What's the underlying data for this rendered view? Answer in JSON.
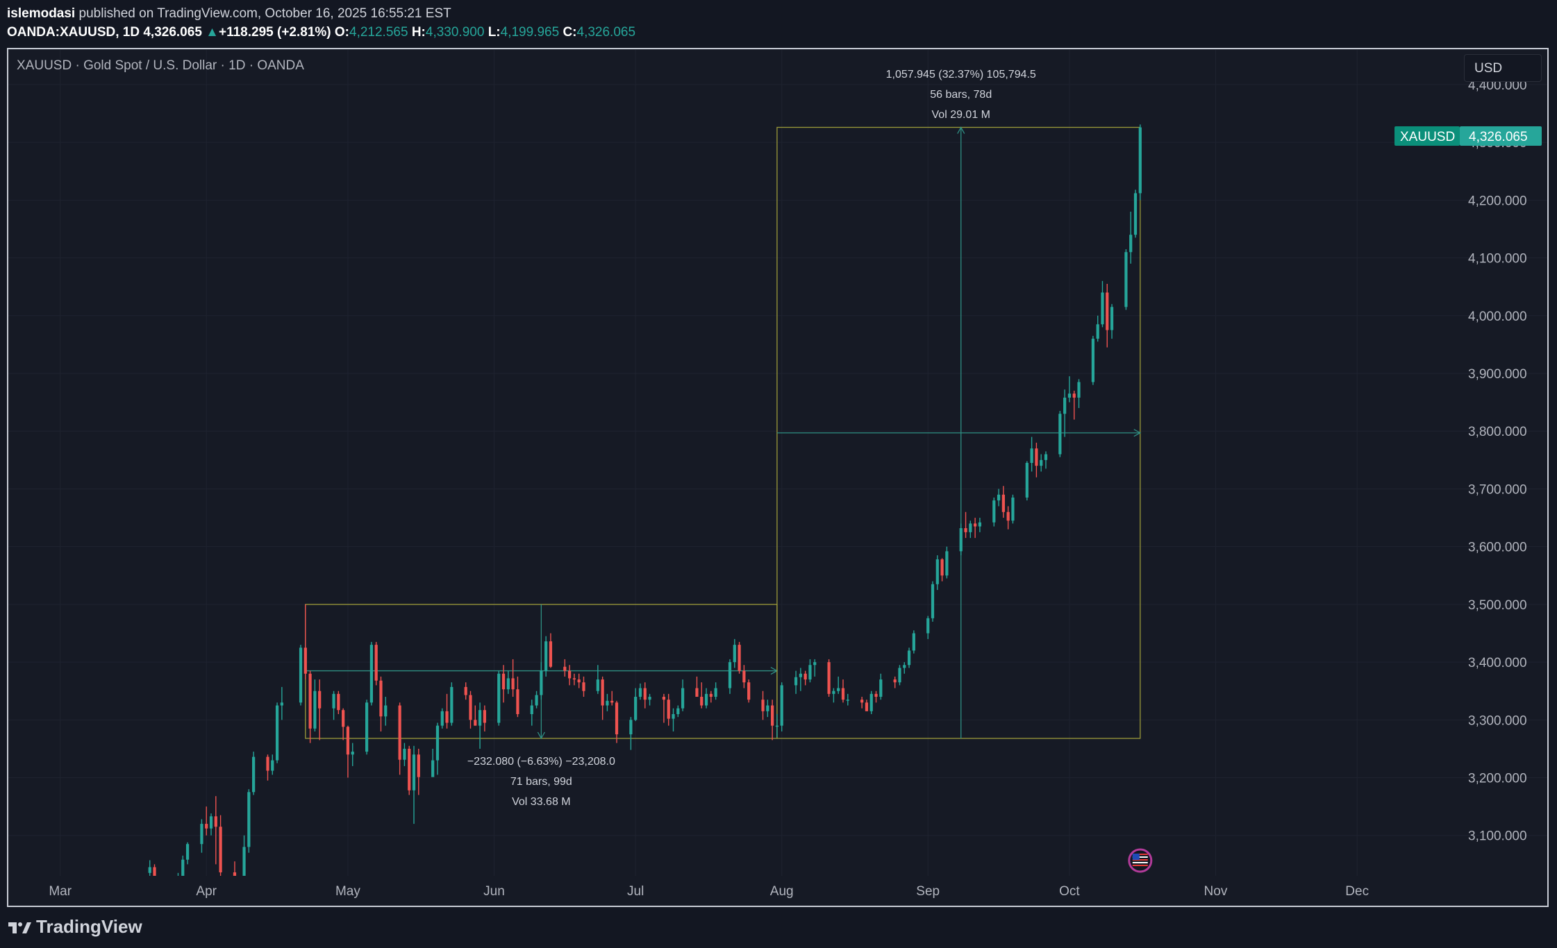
{
  "header": {
    "user": "islemodasi",
    "published": "published on TradingView.com, October 16, 2025 16:55:21 EST",
    "symbol": "OANDA:XAUUSD, 1D",
    "last": "4,326.065",
    "change": "+118.295 (+2.81%)",
    "open_label": "O:",
    "open": "4,212.565",
    "high_label": "H:",
    "high": "4,330.900",
    "low_label": "L:",
    "low": "4,199.965",
    "close_label": "C:",
    "close": "4,326.065"
  },
  "legend_title": "XAUUSD · Gold Spot / U.S. Dollar · 1D · OANDA",
  "currency_button": "USD",
  "price_tag": {
    "symbol": "XAUUSD",
    "value": "4,326.065"
  },
  "brand": "TradingView",
  "colors": {
    "up": "#26a69a",
    "down": "#ef5350",
    "background": "#161a25",
    "grid": "#1f2330",
    "range_box": "#9c9a3a",
    "arrow": "#2f8f83"
  },
  "chart_data": {
    "type": "candlestick",
    "yaxis_ticks": [
      3100,
      3200,
      3300,
      3400,
      3500,
      3600,
      3700,
      3800,
      3900,
      4000,
      4100,
      4200,
      4300,
      4400
    ],
    "yaxis_labels": [
      "3,100.000",
      "3,200.000",
      "3,300.000",
      "3,400.000",
      "3,500.000",
      "3,600.000",
      "3,700.000",
      "3,800.000",
      "3,900.000",
      "4,000.000",
      "4,100.000",
      "4,200.000",
      "4,300.000",
      "4,400.000"
    ],
    "ylim": [
      3030,
      4460
    ],
    "xlim": [
      "2025-02-18",
      "2025-12-21"
    ],
    "xaxis_ticks": [
      {
        "date": "2025-03-01",
        "label": "Mar"
      },
      {
        "date": "2025-04-01",
        "label": "Apr"
      },
      {
        "date": "2025-05-01",
        "label": "May"
      },
      {
        "date": "2025-06-01",
        "label": "Jun"
      },
      {
        "date": "2025-07-01",
        "label": "Jul"
      },
      {
        "date": "2025-08-01",
        "label": "Aug"
      },
      {
        "date": "2025-09-01",
        "label": "Sep"
      },
      {
        "date": "2025-10-01",
        "label": "Oct"
      },
      {
        "date": "2025-11-01",
        "label": "Nov"
      },
      {
        "date": "2025-12-01",
        "label": "Dec"
      }
    ],
    "candles": [
      [
        "2025-03-20",
        3035,
        3057,
        3025,
        3045
      ],
      [
        "2025-03-21",
        3045,
        3050,
        3000,
        3025
      ],
      [
        "2025-03-24",
        3025,
        3030,
        3000,
        3012
      ],
      [
        "2025-03-26",
        3020,
        3035,
        3010,
        3030
      ],
      [
        "2025-03-27",
        3030,
        3065,
        3025,
        3058
      ],
      [
        "2025-03-28",
        3058,
        3088,
        3050,
        3085
      ],
      [
        "2025-03-31",
        3085,
        3128,
        3070,
        3120
      ],
      [
        "2025-04-01",
        3120,
        3150,
        3100,
        3112
      ],
      [
        "2025-04-02",
        3112,
        3138,
        3100,
        3133
      ],
      [
        "2025-04-03",
        3133,
        3168,
        3050,
        3115
      ],
      [
        "2025-04-04",
        3115,
        3135,
        3020,
        3036
      ],
      [
        "2025-04-07",
        3036,
        3055,
        2960,
        3000
      ],
      [
        "2025-04-08",
        3000,
        3025,
        2970,
        3010
      ],
      [
        "2025-04-09",
        3010,
        3100,
        2990,
        3080
      ],
      [
        "2025-04-10",
        3080,
        3180,
        3070,
        3175
      ],
      [
        "2025-04-11",
        3175,
        3245,
        3170,
        3236
      ],
      [
        "2025-04-14",
        3236,
        3240,
        3195,
        3212
      ],
      [
        "2025-04-15",
        3212,
        3240,
        3205,
        3230
      ],
      [
        "2025-04-16",
        3230,
        3330,
        3225,
        3325
      ],
      [
        "2025-04-17",
        3325,
        3357,
        3300,
        3330
      ],
      [
        "2025-04-21",
        3330,
        3430,
        3325,
        3425
      ],
      [
        "2025-04-22",
        3425,
        3500,
        3370,
        3380
      ],
      [
        "2025-04-23",
        3380,
        3385,
        3260,
        3285
      ],
      [
        "2025-04-24",
        3285,
        3370,
        3280,
        3350
      ],
      [
        "2025-04-25",
        3350,
        3370,
        3265,
        3320
      ],
      [
        "2025-04-28",
        3320,
        3350,
        3300,
        3345
      ],
      [
        "2025-04-29",
        3345,
        3350,
        3310,
        3317
      ],
      [
        "2025-04-30",
        3317,
        3320,
        3265,
        3288
      ],
      [
        "2025-05-01",
        3288,
        3290,
        3200,
        3240
      ],
      [
        "2025-05-02",
        3240,
        3260,
        3220,
        3245
      ],
      [
        "2025-05-05",
        3245,
        3335,
        3240,
        3330
      ],
      [
        "2025-05-06",
        3330,
        3435,
        3325,
        3430
      ],
      [
        "2025-05-07",
        3430,
        3435,
        3360,
        3368
      ],
      [
        "2025-05-08",
        3368,
        3375,
        3280,
        3306
      ],
      [
        "2025-05-09",
        3306,
        3340,
        3290,
        3325
      ],
      [
        "2025-05-12",
        3325,
        3330,
        3205,
        3231
      ],
      [
        "2025-05-13",
        3231,
        3260,
        3220,
        3250
      ],
      [
        "2025-05-14",
        3250,
        3255,
        3170,
        3178
      ],
      [
        "2025-05-15",
        3178,
        3255,
        3120,
        3240
      ],
      [
        "2025-05-16",
        3240,
        3250,
        3170,
        3201
      ],
      [
        "2025-05-19",
        3201,
        3250,
        3205,
        3230
      ],
      [
        "2025-05-20",
        3230,
        3295,
        3205,
        3290
      ],
      [
        "2025-05-21",
        3290,
        3320,
        3285,
        3315
      ],
      [
        "2025-05-22",
        3315,
        3345,
        3285,
        3295
      ],
      [
        "2025-05-23",
        3295,
        3365,
        3290,
        3357
      ],
      [
        "2025-05-26",
        3357,
        3365,
        3335,
        3343
      ],
      [
        "2025-05-27",
        3343,
        3350,
        3285,
        3300
      ],
      [
        "2025-05-28",
        3300,
        3325,
        3290,
        3290
      ],
      [
        "2025-05-29",
        3290,
        3330,
        3250,
        3317
      ],
      [
        "2025-05-30",
        3317,
        3325,
        3280,
        3295
      ],
      [
        "2025-06-02",
        3295,
        3385,
        3290,
        3380
      ],
      [
        "2025-06-03",
        3380,
        3395,
        3330,
        3353
      ],
      [
        "2025-06-04",
        3353,
        3385,
        3345,
        3372
      ],
      [
        "2025-06-05",
        3372,
        3405,
        3340,
        3353
      ],
      [
        "2025-06-06",
        3353,
        3375,
        3305,
        3310
      ],
      [
        "2025-06-09",
        3310,
        3335,
        3290,
        3325
      ],
      [
        "2025-06-10",
        3325,
        3350,
        3320,
        3343
      ],
      [
        "2025-06-11",
        3343,
        3400,
        3335,
        3385
      ],
      [
        "2025-06-12",
        3385,
        3445,
        3375,
        3436
      ],
      [
        "2025-06-13",
        3436,
        3450,
        3390,
        3392
      ],
      [
        "2025-06-16",
        3392,
        3405,
        3375,
        3385
      ],
      [
        "2025-06-17",
        3385,
        3395,
        3360,
        3372
      ],
      [
        "2025-06-18",
        3372,
        3380,
        3360,
        3370
      ],
      [
        "2025-06-19",
        3370,
        3380,
        3355,
        3365
      ],
      [
        "2025-06-20",
        3365,
        3375,
        3340,
        3350
      ],
      [
        "2025-06-23",
        3350,
        3395,
        3345,
        3370
      ],
      [
        "2025-06-24",
        3370,
        3375,
        3300,
        3325
      ],
      [
        "2025-06-25",
        3325,
        3345,
        3315,
        3333
      ],
      [
        "2025-06-26",
        3333,
        3350,
        3325,
        3330
      ],
      [
        "2025-06-27",
        3330,
        3333,
        3260,
        3275
      ],
      [
        "2025-06-30",
        3275,
        3305,
        3248,
        3300
      ],
      [
        "2025-07-01",
        3300,
        3355,
        3298,
        3340
      ],
      [
        "2025-07-02",
        3340,
        3363,
        3335,
        3355
      ],
      [
        "2025-07-03",
        3355,
        3365,
        3320,
        3335
      ],
      [
        "2025-07-04",
        3335,
        3345,
        3325,
        3340
      ],
      [
        "2025-07-07",
        3340,
        3345,
        3295,
        3335
      ],
      [
        "2025-07-08",
        3335,
        3345,
        3290,
        3302
      ],
      [
        "2025-07-09",
        3302,
        3320,
        3280,
        3310
      ],
      [
        "2025-07-10",
        3310,
        3325,
        3305,
        3320
      ],
      [
        "2025-07-11",
        3320,
        3370,
        3315,
        3355
      ],
      [
        "2025-07-14",
        3355,
        3375,
        3340,
        3340
      ],
      [
        "2025-07-15",
        3340,
        3365,
        3320,
        3325
      ],
      [
        "2025-07-16",
        3325,
        3355,
        3320,
        3345
      ],
      [
        "2025-07-17",
        3345,
        3350,
        3330,
        3340
      ],
      [
        "2025-07-18",
        3340,
        3365,
        3335,
        3355
      ],
      [
        "2025-07-21",
        3355,
        3405,
        3345,
        3400
      ],
      [
        "2025-07-22",
        3400,
        3440,
        3390,
        3430
      ],
      [
        "2025-07-23",
        3430,
        3435,
        3380,
        3385
      ],
      [
        "2025-07-24",
        3385,
        3395,
        3355,
        3365
      ],
      [
        "2025-07-25",
        3365,
        3370,
        3330,
        3335
      ],
      [
        "2025-07-28",
        3335,
        3350,
        3300,
        3315
      ],
      [
        "2025-07-29",
        3315,
        3335,
        3305,
        3325
      ],
      [
        "2025-07-30",
        3325,
        3335,
        3265,
        3290
      ],
      [
        "2025-07-31",
        3290,
        3310,
        3270,
        3290
      ],
      [
        "2025-08-01",
        3290,
        3365,
        3280,
        3360
      ],
      [
        "2025-08-04",
        3360,
        3385,
        3345,
        3374
      ],
      [
        "2025-08-05",
        3374,
        3390,
        3350,
        3380
      ],
      [
        "2025-08-06",
        3380,
        3385,
        3360,
        3370
      ],
      [
        "2025-08-07",
        3370,
        3405,
        3365,
        3395
      ],
      [
        "2025-08-08",
        3395,
        3405,
        3375,
        3400
      ],
      [
        "2025-08-11",
        3400,
        3405,
        3340,
        3345
      ],
      [
        "2025-08-12",
        3345,
        3355,
        3330,
        3350
      ],
      [
        "2025-08-13",
        3350,
        3375,
        3345,
        3355
      ],
      [
        "2025-08-14",
        3355,
        3370,
        3330,
        3335
      ],
      [
        "2025-08-15",
        3335,
        3345,
        3325,
        3335
      ],
      [
        "2025-08-18",
        3335,
        3340,
        3320,
        3330
      ],
      [
        "2025-08-19",
        3330,
        3335,
        3315,
        3315
      ],
      [
        "2025-08-20",
        3315,
        3350,
        3310,
        3345
      ],
      [
        "2025-08-21",
        3345,
        3350,
        3330,
        3340
      ],
      [
        "2025-08-22",
        3340,
        3380,
        3335,
        3370
      ],
      [
        "2025-08-25",
        3370,
        3375,
        3355,
        3365
      ],
      [
        "2025-08-26",
        3365,
        3395,
        3360,
        3390
      ],
      [
        "2025-08-27",
        3390,
        3400,
        3380,
        3395
      ],
      [
        "2025-08-28",
        3395,
        3425,
        3390,
        3420
      ],
      [
        "2025-08-29",
        3420,
        3455,
        3415,
        3450
      ],
      [
        "2025-09-01",
        3450,
        3480,
        3440,
        3476
      ],
      [
        "2025-09-02",
        3476,
        3540,
        3470,
        3535
      ],
      [
        "2025-09-03",
        3535,
        3585,
        3525,
        3578
      ],
      [
        "2025-09-04",
        3578,
        3580,
        3540,
        3550
      ],
      [
        "2025-09-05",
        3550,
        3600,
        3545,
        3592
      ],
      [
        "2025-09-08",
        3592,
        3640,
        3585,
        3632
      ],
      [
        "2025-09-09",
        3632,
        3660,
        3615,
        3625
      ],
      [
        "2025-09-10",
        3625,
        3645,
        3615,
        3640
      ],
      [
        "2025-09-11",
        3640,
        3650,
        3615,
        3635
      ],
      [
        "2025-09-12",
        3635,
        3650,
        3625,
        3642
      ],
      [
        "2025-09-15",
        3642,
        3685,
        3635,
        3680
      ],
      [
        "2025-09-16",
        3680,
        3700,
        3670,
        3690
      ],
      [
        "2025-09-17",
        3690,
        3705,
        3650,
        3660
      ],
      [
        "2025-09-18",
        3660,
        3670,
        3630,
        3645
      ],
      [
        "2025-09-19",
        3645,
        3690,
        3640,
        3685
      ],
      [
        "2025-09-22",
        3685,
        3748,
        3680,
        3745
      ],
      [
        "2025-09-23",
        3745,
        3790,
        3730,
        3770
      ],
      [
        "2025-09-24",
        3770,
        3780,
        3720,
        3740
      ],
      [
        "2025-09-25",
        3740,
        3760,
        3730,
        3750
      ],
      [
        "2025-09-26",
        3750,
        3765,
        3735,
        3760
      ],
      [
        "2025-09-29",
        3760,
        3835,
        3755,
        3830
      ],
      [
        "2025-09-30",
        3830,
        3872,
        3790,
        3858
      ],
      [
        "2025-10-01",
        3858,
        3895,
        3850,
        3865
      ],
      [
        "2025-10-02",
        3865,
        3870,
        3820,
        3858
      ],
      [
        "2025-10-03",
        3858,
        3890,
        3840,
        3885
      ],
      [
        "2025-10-06",
        3885,
        3965,
        3880,
        3960
      ],
      [
        "2025-10-07",
        3960,
        4000,
        3955,
        3985
      ],
      [
        "2025-10-08",
        3985,
        4060,
        3980,
        4040
      ],
      [
        "2025-10-09",
        4040,
        4055,
        3945,
        3975
      ],
      [
        "2025-10-10",
        3975,
        4020,
        3960,
        4015
      ],
      [
        "2025-10-13",
        4015,
        4115,
        4010,
        4110
      ],
      [
        "2025-10-14",
        4110,
        4180,
        4090,
        4140
      ],
      [
        "2025-10-15",
        4140,
        4218,
        4135,
        4212
      ],
      [
        "2025-10-16",
        4212,
        4331,
        4200,
        4326
      ]
    ],
    "annotations": [
      {
        "label_lines": [
          "−232.080 (−6.63%) −23,208.0",
          "71 bars, 99d",
          "Vol 33.68 M"
        ],
        "start_date": "2025-04-22",
        "end_date": "2025-07-31",
        "price_top": 3500,
        "price_bottom": 3268,
        "arrow_price": 3385,
        "vertical_date": "2025-06-11"
      },
      {
        "label_lines": [
          "1,057.945 (32.37%) 105,794.5",
          "56 bars, 78d",
          "Vol 29.01 M"
        ],
        "start_date": "2025-07-31",
        "end_date": "2025-10-16",
        "price_top": 4326,
        "price_bottom": 3268,
        "arrow_price": 3797,
        "vertical_date": "2025-09-08"
      }
    ],
    "event_marker_date": "2025-10-16"
  }
}
